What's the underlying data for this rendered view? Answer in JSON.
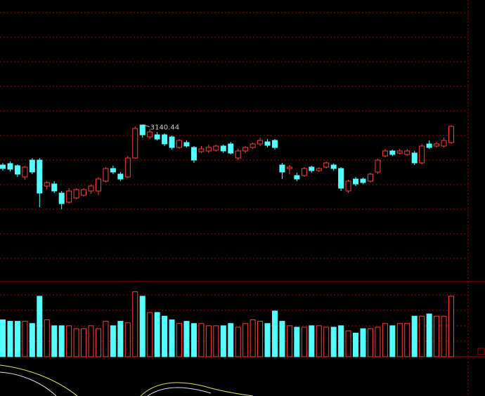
{
  "chart_data": [
    {
      "type": "candlestick",
      "ylim": [
        2918,
        3318
      ],
      "up_color": "#ff3c3c",
      "down_color": "#54ffff",
      "open": [
        3083,
        3085,
        3082,
        3066,
        3090,
        3090,
        3053,
        3056,
        3043,
        3030,
        3036,
        3040,
        3046,
        3046,
        3060,
        3078,
        3070,
        3066,
        3093,
        3140,
        3123,
        3126,
        3126,
        3123,
        3108,
        3115,
        3108,
        3102,
        3103,
        3104,
        3110,
        3113,
        3093,
        3103,
        3108,
        3113,
        3116,
        3118,
        3083,
        3078,
        3068,
        3068,
        3080,
        3075,
        3080,
        3083,
        3078,
        3046,
        3063,
        3063,
        3060,
        3073,
        3096,
        3103,
        3100,
        3098,
        3100,
        3086,
        3113,
        3110,
        3110,
        3115
      ],
      "close": [
        3078,
        3077,
        3070,
        3080,
        3073,
        3043,
        3058,
        3046,
        3028,
        3046,
        3048,
        3048,
        3053,
        3063,
        3078,
        3073,
        3063,
        3093,
        3135,
        3126,
        3130,
        3120,
        3113,
        3108,
        3118,
        3110,
        3090,
        3106,
        3108,
        3110,
        3103,
        3100,
        3103,
        3108,
        3113,
        3118,
        3111,
        3108,
        3073,
        3080,
        3063,
        3078,
        3075,
        3078,
        3086,
        3078,
        3050,
        3060,
        3056,
        3058,
        3070,
        3090,
        3103,
        3098,
        3103,
        3103,
        3086,
        3110,
        3108,
        3113,
        3118,
        3138
      ],
      "high": [
        3086,
        3088,
        3084,
        3082,
        3093,
        3093,
        3060,
        3060,
        3046,
        3050,
        3050,
        3050,
        3055,
        3066,
        3080,
        3082,
        3073,
        3096,
        3138,
        3140.44,
        3134,
        3130,
        3128,
        3125,
        3120,
        3118,
        3110,
        3110,
        3112,
        3112,
        3112,
        3116,
        3106,
        3110,
        3115,
        3122,
        3120,
        3120,
        3086,
        3083,
        3072,
        3080,
        3082,
        3080,
        3088,
        3085,
        3080,
        3062,
        3066,
        3065,
        3072,
        3092,
        3106,
        3105,
        3106,
        3106,
        3103,
        3113,
        3118,
        3116,
        3122,
        3140
      ],
      "low": [
        3075,
        3074,
        3066,
        3062,
        3070,
        3023,
        3048,
        3043,
        3020,
        3028,
        3034,
        3038,
        3042,
        3040,
        3058,
        3070,
        3060,
        3064,
        3092,
        3122,
        3120,
        3118,
        3110,
        3105,
        3106,
        3108,
        3086,
        3100,
        3100,
        3102,
        3100,
        3098,
        3090,
        3100,
        3106,
        3110,
        3108,
        3105,
        3063,
        3070,
        3060,
        3066,
        3072,
        3073,
        3078,
        3075,
        3046,
        3043,
        3053,
        3056,
        3058,
        3070,
        3094,
        3096,
        3098,
        3096,
        3083,
        3084,
        3106,
        3108,
        3108,
        3113
      ]
    },
    {
      "type": "bar",
      "ylim": [
        0,
        100
      ],
      "values": [
        50,
        48,
        48,
        48,
        45,
        82,
        50,
        42,
        42,
        42,
        38,
        38,
        42,
        38,
        48,
        42,
        48,
        46,
        88,
        82,
        60,
        60,
        55,
        50,
        45,
        48,
        45,
        45,
        42,
        42,
        42,
        45,
        40,
        45,
        50,
        48,
        45,
        62,
        48,
        42,
        40,
        40,
        42,
        42,
        40,
        40,
        42,
        35,
        32,
        38,
        38,
        40,
        45,
        42,
        45,
        45,
        55,
        55,
        58,
        55,
        55,
        82
      ]
    }
  ]
}
